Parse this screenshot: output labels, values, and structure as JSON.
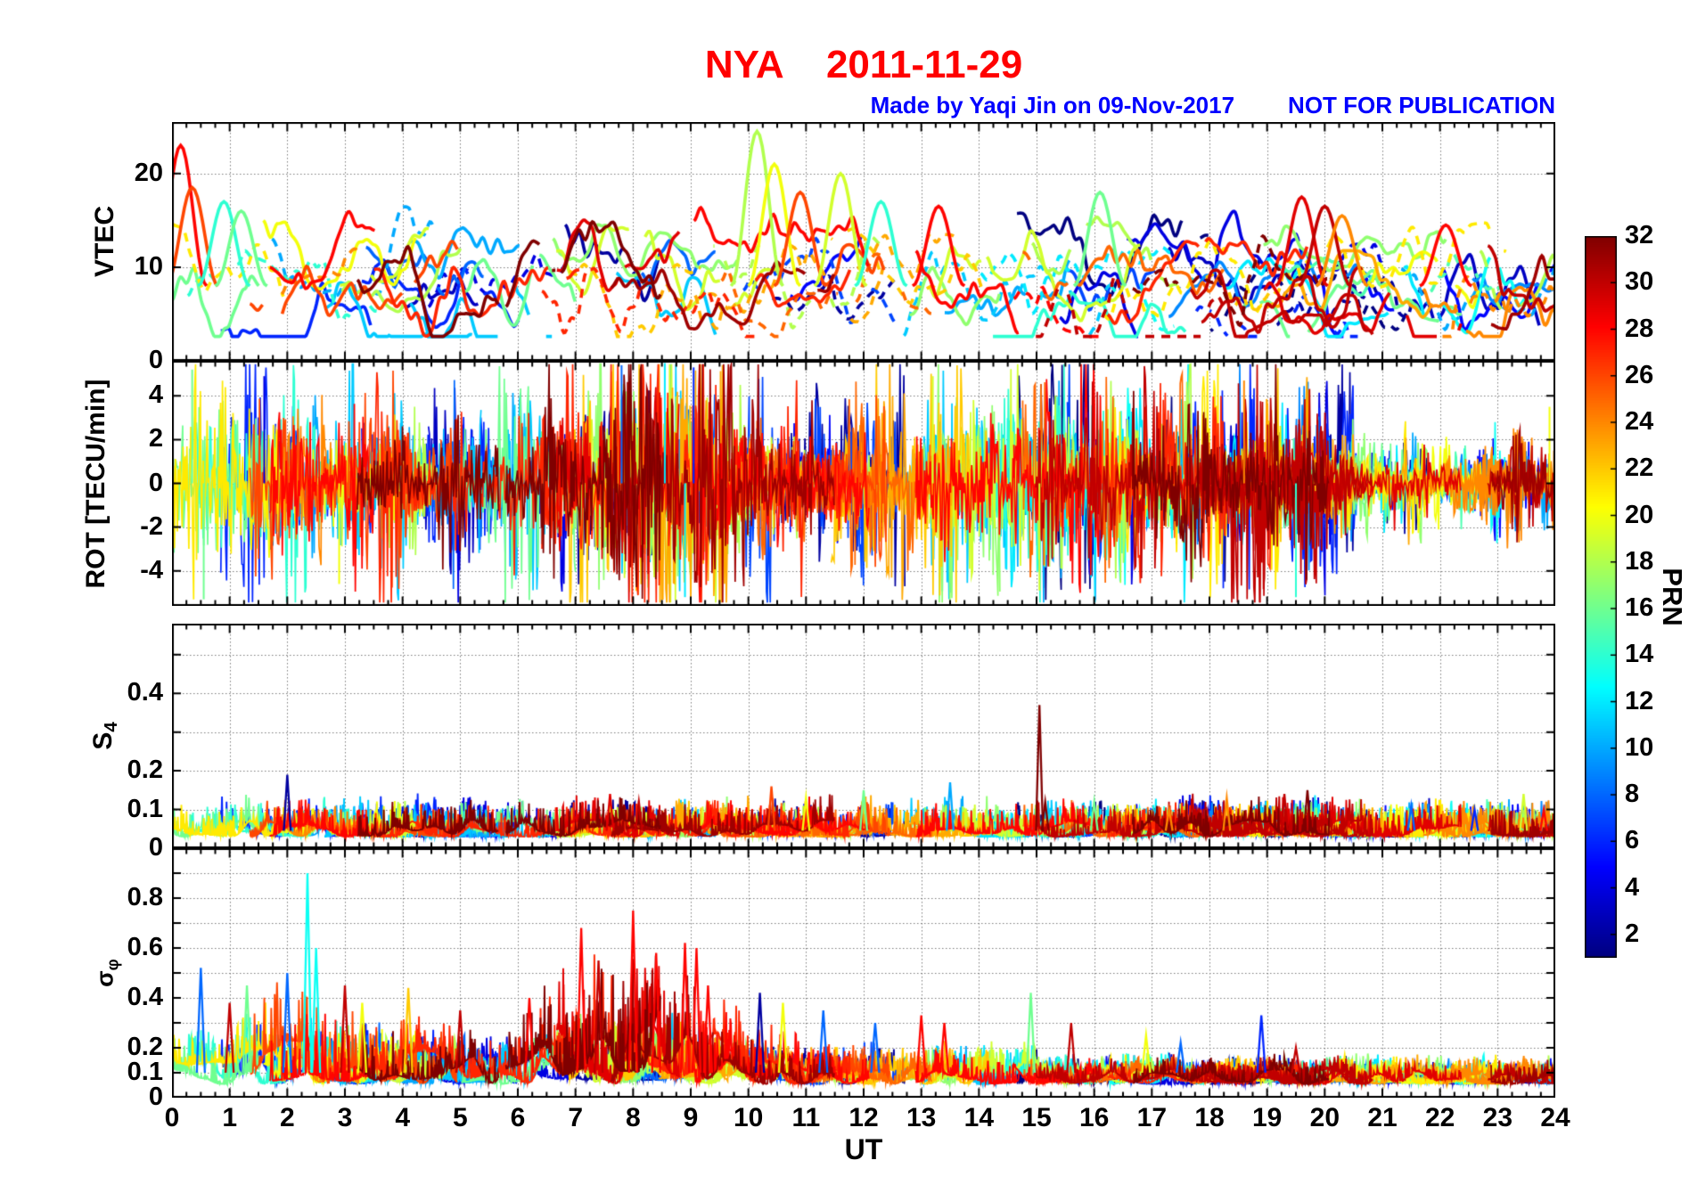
{
  "title": "NYA    2011-11-29",
  "station": "NYA",
  "date": "2011-11-29",
  "credit": {
    "author": "Made by Yaqi Jin on 09-Nov-2017",
    "warning": "NOT FOR PUBLICATION"
  },
  "chart_data": {
    "type": "line",
    "xlabel": "UT",
    "x_range": [
      0,
      24
    ],
    "x_ticks": [
      "0",
      "1",
      "2",
      "3",
      "4",
      "5",
      "6",
      "7",
      "8",
      "9",
      "10",
      "11",
      "12",
      "13",
      "14",
      "15",
      "16",
      "17",
      "18",
      "19",
      "20",
      "21",
      "22",
      "23",
      "24"
    ],
    "colorbar": {
      "label": "PRN",
      "min": 1,
      "max": 32,
      "ticks": [
        2,
        4,
        6,
        8,
        10,
        12,
        14,
        16,
        18,
        20,
        22,
        24,
        26,
        28,
        30,
        32
      ],
      "colormap": "jet"
    },
    "panels": [
      {
        "id": "vtec",
        "ylabel": "VTEC",
        "ylim": [
          0,
          25.5
        ],
        "grid": [
          10,
          20
        ],
        "ytick_labels": [
          {
            "v": 20,
            "t": "20"
          },
          {
            "v": 10,
            "t": "10"
          },
          {
            "v": 0,
            "t": "0"
          }
        ],
        "description": "Vertical TEC arcs for all tracked GPS PRNs; most arcs lie between 4 and 15 TECU, with peaks to ~24 TECU near 00:10 and 10:10 UT and enhanced red/orange arcs 19-21 UT."
      },
      {
        "id": "rot",
        "ylabel": "ROT [TECU/min]",
        "ylim": [
          -5.6,
          5.6
        ],
        "grid": [
          -4,
          -2,
          0,
          2,
          4
        ],
        "ytick_labels": [
          {
            "v": 4,
            "t": "4"
          },
          {
            "v": 2,
            "t": "2"
          },
          {
            "v": 0,
            "t": "0"
          },
          {
            "v": -2,
            "t": "-2"
          },
          {
            "v": -4,
            "t": "-4"
          }
        ],
        "description": "Rate of TEC change; dense noise about 0 (±1 TECU/min) with excursions beyond ±4 around 00-02, 07-09:30 and 13-15 UT; quieter after 21 UT."
      },
      {
        "id": "s4",
        "ylabel_main": "S",
        "ylabel_sub": "4",
        "ylim": [
          0,
          0.58
        ],
        "grid": [
          0.1,
          0.2,
          0.3,
          0.4,
          0.5
        ],
        "ytick_labels": [
          {
            "v": 0.4,
            "t": "0.4"
          },
          {
            "v": 0.2,
            "t": "0.2"
          },
          {
            "v": 0.1,
            "t": "0.1"
          },
          {
            "v": 0,
            "t": "0"
          }
        ],
        "description": "Amplitude scintillation index, mostly below 0.08; isolated spikes (see events), strongest 0.37 at 15:03 UT on a dark-red (high) PRN."
      },
      {
        "id": "sigma_phi",
        "ylabel_main": "σ",
        "ylabel_sub": "φ",
        "ylim": [
          0,
          1.0
        ],
        "grid": [
          0.1,
          0.2,
          0.3,
          0.4,
          0.5,
          0.6,
          0.7,
          0.8,
          0.9
        ],
        "ytick_labels": [
          {
            "v": 0.8,
            "t": "0.8"
          },
          {
            "v": 0.6,
            "t": "0.6"
          },
          {
            "v": 0.4,
            "t": "0.4"
          },
          {
            "v": 0.2,
            "t": "0.2"
          },
          {
            "v": 0.1,
            "t": "0.1"
          },
          {
            "v": 0,
            "t": "0"
          }
        ],
        "description": "Phase scintillation index; elevated 00-10 UT with red-PRN bursts to 0.6-0.75 between 07 and 09:30 UT and a cyan spike to ~0.9 at 02:20 UT; background ~0.1 elsewhere."
      }
    ],
    "events_format": "[UT hour, value, PRN]",
    "events": {
      "vtec": [
        [
          0.15,
          23,
          28
        ],
        [
          0.35,
          18.5,
          26
        ],
        [
          0.9,
          17,
          14
        ],
        [
          1.2,
          16,
          16
        ],
        [
          10.15,
          24.5,
          18
        ],
        [
          10.45,
          21,
          20
        ],
        [
          10.9,
          18,
          26
        ],
        [
          11.6,
          20,
          19
        ],
        [
          12.3,
          17,
          14
        ],
        [
          13.3,
          16.5,
          28
        ],
        [
          16.1,
          18,
          16
        ],
        [
          19.6,
          17.5,
          29
        ],
        [
          20.0,
          16.5,
          30
        ],
        [
          20.3,
          15.5,
          24
        ],
        [
          22.1,
          14.5,
          28
        ]
      ],
      "rot": [
        [
          0.35,
          5.2,
          16
        ],
        [
          0.55,
          -5.3,
          16
        ],
        [
          1.6,
          4.9,
          4
        ],
        [
          2.9,
          -4.6,
          20
        ],
        [
          7.8,
          5.4,
          8
        ],
        [
          8.55,
          5.5,
          12
        ],
        [
          8.9,
          -5.2,
          12
        ],
        [
          9.05,
          5.3,
          6
        ],
        [
          13.2,
          4.9,
          19
        ],
        [
          15.05,
          -4.9,
          19
        ],
        [
          18.6,
          4.7,
          24
        ],
        [
          19.5,
          -5.2,
          14
        ],
        [
          23.9,
          3.5,
          20
        ]
      ],
      "s4": [
        [
          2.0,
          0.19,
          2
        ],
        [
          7.6,
          0.14,
          29
        ],
        [
          8.1,
          0.12,
          30
        ],
        [
          10.4,
          0.16,
          26
        ],
        [
          11.0,
          0.13,
          20
        ],
        [
          12.0,
          0.15,
          16
        ],
        [
          13.5,
          0.17,
          10
        ],
        [
          15.05,
          0.37,
          32
        ],
        [
          15.15,
          0.12,
          32
        ],
        [
          16.0,
          0.12,
          16
        ],
        [
          17.3,
          0.1,
          24
        ],
        [
          18.3,
          0.13,
          24
        ],
        [
          19.3,
          0.14,
          30
        ],
        [
          19.7,
          0.15,
          32
        ],
        [
          21.5,
          0.11,
          8
        ],
        [
          22.6,
          0.1,
          6
        ],
        [
          23.45,
          0.14,
          19
        ],
        [
          23.8,
          0.1,
          28
        ]
      ],
      "sigma_phi": [
        [
          0.5,
          0.52,
          8
        ],
        [
          1.0,
          0.38,
          30
        ],
        [
          1.3,
          0.45,
          16
        ],
        [
          2.0,
          0.5,
          8
        ],
        [
          2.35,
          0.9,
          13
        ],
        [
          2.5,
          0.6,
          13
        ],
        [
          3.0,
          0.45,
          30
        ],
        [
          3.3,
          0.38,
          20
        ],
        [
          4.1,
          0.44,
          22
        ],
        [
          5.0,
          0.35,
          30
        ],
        [
          6.2,
          0.4,
          28
        ],
        [
          7.1,
          0.68,
          28
        ],
        [
          7.4,
          0.55,
          30
        ],
        [
          8.0,
          0.75,
          28
        ],
        [
          8.4,
          0.58,
          28
        ],
        [
          8.9,
          0.62,
          28
        ],
        [
          9.1,
          0.6,
          28
        ],
        [
          9.3,
          0.45,
          28
        ],
        [
          10.2,
          0.42,
          2
        ],
        [
          10.6,
          0.38,
          20
        ],
        [
          11.3,
          0.35,
          8
        ],
        [
          12.2,
          0.3,
          8
        ],
        [
          13.0,
          0.33,
          28
        ],
        [
          13.4,
          0.3,
          28
        ],
        [
          14.9,
          0.42,
          16
        ],
        [
          15.6,
          0.3,
          30
        ],
        [
          16.9,
          0.25,
          20
        ],
        [
          17.5,
          0.22,
          8
        ],
        [
          18.9,
          0.33,
          6
        ],
        [
          19.5,
          0.2,
          30
        ]
      ]
    }
  }
}
